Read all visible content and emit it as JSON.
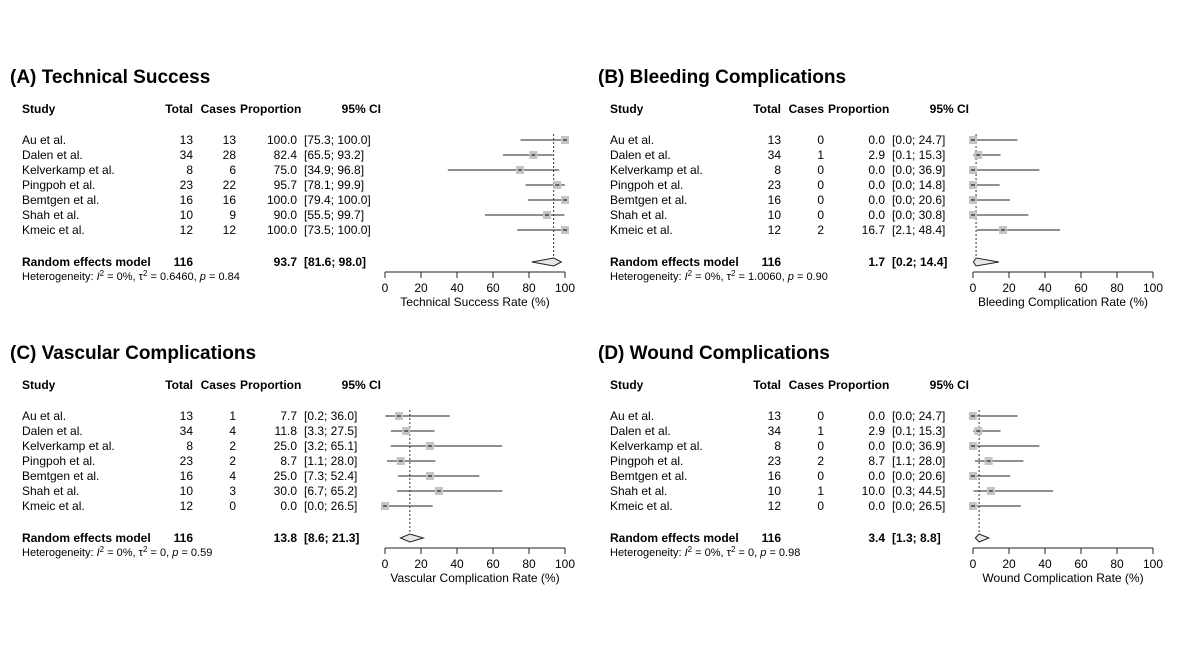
{
  "headers": {
    "study": "Study",
    "total": "Total",
    "cases": "Cases",
    "proportion": "Proportion",
    "ci": "95% CI"
  },
  "chart_data": [
    {
      "type": "forest",
      "label": "(A)",
      "title": "Technical Success",
      "xlabel": "Technical Success Rate (%)",
      "xlim": [
        0,
        100
      ],
      "xticks": [
        "0",
        "20",
        "40",
        "60",
        "80",
        "100"
      ],
      "studies": [
        {
          "name": "Au et al.",
          "total": "13",
          "cases": "13",
          "prop": "100.0",
          "ci": "[75.3; 100.0]",
          "est": 100.0,
          "lo": 75.3,
          "hi": 100.0
        },
        {
          "name": "Dalen et al.",
          "total": "34",
          "cases": "28",
          "prop": "82.4",
          "ci": "[65.5;  93.2]",
          "est": 82.4,
          "lo": 65.5,
          "hi": 93.2
        },
        {
          "name": "Kelverkamp et al.",
          "total": "8",
          "cases": "6",
          "prop": "75.0",
          "ci": "[34.9;  96.8]",
          "est": 75.0,
          "lo": 34.9,
          "hi": 96.8
        },
        {
          "name": "Pingpoh et al.",
          "total": "23",
          "cases": "22",
          "prop": "95.7",
          "ci": "[78.1;  99.9]",
          "est": 95.7,
          "lo": 78.1,
          "hi": 99.9
        },
        {
          "name": "Bemtgen et al.",
          "total": "16",
          "cases": "16",
          "prop": "100.0",
          "ci": "[79.4; 100.0]",
          "est": 100.0,
          "lo": 79.4,
          "hi": 100.0
        },
        {
          "name": "Shah et al.",
          "total": "10",
          "cases": "9",
          "prop": "90.0",
          "ci": "[55.5;  99.7]",
          "est": 90.0,
          "lo": 55.5,
          "hi": 99.7
        },
        {
          "name": "Kmeic et al.",
          "total": "12",
          "cases": "12",
          "prop": "100.0",
          "ci": "[73.5; 100.0]",
          "est": 100.0,
          "lo": 73.5,
          "hi": 100.0
        }
      ],
      "pooled": {
        "name": "Random effects model",
        "total": "116",
        "prop": "93.7",
        "ci": "[81.6;  98.0]",
        "est": 93.7,
        "lo": 81.6,
        "hi": 98.0
      },
      "heterogeneity": {
        "i2": "0%",
        "tau2": "0.6460",
        "p": "0.84"
      }
    },
    {
      "type": "forest",
      "label": "(B)",
      "title": "Bleeding Complications",
      "xlabel": "Bleeding Complication Rate (%)",
      "xlim": [
        0,
        100
      ],
      "xticks": [
        "0",
        "20",
        "40",
        "60",
        "80",
        "100"
      ],
      "studies": [
        {
          "name": "Au et al.",
          "total": "13",
          "cases": "0",
          "prop": "0.0",
          "ci": "[0.0; 24.7]",
          "est": 0.0,
          "lo": 0.0,
          "hi": 24.7
        },
        {
          "name": "Dalen et al.",
          "total": "34",
          "cases": "1",
          "prop": "2.9",
          "ci": "[0.1; 15.3]",
          "est": 2.9,
          "lo": 0.1,
          "hi": 15.3
        },
        {
          "name": "Kelverkamp et al.",
          "total": "8",
          "cases": "0",
          "prop": "0.0",
          "ci": "[0.0; 36.9]",
          "est": 0.0,
          "lo": 0.0,
          "hi": 36.9
        },
        {
          "name": "Pingpoh et al.",
          "total": "23",
          "cases": "0",
          "prop": "0.0",
          "ci": "[0.0; 14.8]",
          "est": 0.0,
          "lo": 0.0,
          "hi": 14.8
        },
        {
          "name": "Bemtgen et al.",
          "total": "16",
          "cases": "0",
          "prop": "0.0",
          "ci": "[0.0; 20.6]",
          "est": 0.0,
          "lo": 0.0,
          "hi": 20.6
        },
        {
          "name": "Shah et al.",
          "total": "10",
          "cases": "0",
          "prop": "0.0",
          "ci": "[0.0; 30.8]",
          "est": 0.0,
          "lo": 0.0,
          "hi": 30.8
        },
        {
          "name": "Kmeic et al.",
          "total": "12",
          "cases": "2",
          "prop": "16.7",
          "ci": "[2.1; 48.4]",
          "est": 16.7,
          "lo": 2.1,
          "hi": 48.4
        }
      ],
      "pooled": {
        "name": "Random effects model",
        "total": "116",
        "prop": "1.7",
        "ci": "[0.2; 14.4]",
        "est": 1.7,
        "lo": 0.2,
        "hi": 14.4
      },
      "heterogeneity": {
        "i2": "0%",
        "tau2": "1.0060",
        "p": "0.90"
      }
    },
    {
      "type": "forest",
      "label": "(C)",
      "title": "Vascular Complications",
      "xlabel": "Vascular Complication Rate (%)",
      "xlim": [
        0,
        100
      ],
      "xticks": [
        "0",
        "20",
        "40",
        "60",
        "80",
        "100"
      ],
      "studies": [
        {
          "name": "Au et al.",
          "total": "13",
          "cases": "1",
          "prop": "7.7",
          "ci": "[0.2; 36.0]",
          "est": 7.7,
          "lo": 0.2,
          "hi": 36.0
        },
        {
          "name": "Dalen et al.",
          "total": "34",
          "cases": "4",
          "prop": "11.8",
          "ci": "[3.3; 27.5]",
          "est": 11.8,
          "lo": 3.3,
          "hi": 27.5
        },
        {
          "name": "Kelverkamp et al.",
          "total": "8",
          "cases": "2",
          "prop": "25.0",
          "ci": "[3.2; 65.1]",
          "est": 25.0,
          "lo": 3.2,
          "hi": 65.1
        },
        {
          "name": "Pingpoh et al.",
          "total": "23",
          "cases": "2",
          "prop": "8.7",
          "ci": "[1.1; 28.0]",
          "est": 8.7,
          "lo": 1.1,
          "hi": 28.0
        },
        {
          "name": "Bemtgen et al.",
          "total": "16",
          "cases": "4",
          "prop": "25.0",
          "ci": "[7.3; 52.4]",
          "est": 25.0,
          "lo": 7.3,
          "hi": 52.4
        },
        {
          "name": "Shah et al.",
          "total": "10",
          "cases": "3",
          "prop": "30.0",
          "ci": "[6.7; 65.2]",
          "est": 30.0,
          "lo": 6.7,
          "hi": 65.2
        },
        {
          "name": "Kmeic et al.",
          "total": "12",
          "cases": "0",
          "prop": "0.0",
          "ci": "[0.0; 26.5]",
          "est": 0.0,
          "lo": 0.0,
          "hi": 26.5
        }
      ],
      "pooled": {
        "name": "Random effects model",
        "total": "116",
        "prop": "13.8",
        "ci": "[8.6; 21.3]",
        "est": 13.8,
        "lo": 8.6,
        "hi": 21.3
      },
      "heterogeneity": {
        "i2": "0%",
        "tau2": "0",
        "p": "0.59"
      }
    },
    {
      "type": "forest",
      "label": "(D)",
      "title": "Wound Complications",
      "xlabel": "Wound Complication Rate (%)",
      "xlim": [
        0,
        100
      ],
      "xticks": [
        "0",
        "20",
        "40",
        "60",
        "80",
        "100"
      ],
      "studies": [
        {
          "name": "Au et al.",
          "total": "13",
          "cases": "0",
          "prop": "0.0",
          "ci": "[0.0; 24.7]",
          "est": 0.0,
          "lo": 0.0,
          "hi": 24.7
        },
        {
          "name": "Dalen et al.",
          "total": "34",
          "cases": "1",
          "prop": "2.9",
          "ci": "[0.1; 15.3]",
          "est": 2.9,
          "lo": 0.1,
          "hi": 15.3
        },
        {
          "name": "Kelverkamp et al.",
          "total": "8",
          "cases": "0",
          "prop": "0.0",
          "ci": "[0.0; 36.9]",
          "est": 0.0,
          "lo": 0.0,
          "hi": 36.9
        },
        {
          "name": "Pingpoh et al.",
          "total": "23",
          "cases": "2",
          "prop": "8.7",
          "ci": "[1.1; 28.0]",
          "est": 8.7,
          "lo": 1.1,
          "hi": 28.0
        },
        {
          "name": "Bemtgen et al.",
          "total": "16",
          "cases": "0",
          "prop": "0.0",
          "ci": "[0.0; 20.6]",
          "est": 0.0,
          "lo": 0.0,
          "hi": 20.6
        },
        {
          "name": "Shah et al.",
          "total": "10",
          "cases": "1",
          "prop": "10.0",
          "ci": "[0.3; 44.5]",
          "est": 10.0,
          "lo": 0.3,
          "hi": 44.5
        },
        {
          "name": "Kmeic et al.",
          "total": "12",
          "cases": "0",
          "prop": "0.0",
          "ci": "[0.0; 26.5]",
          "est": 0.0,
          "lo": 0.0,
          "hi": 26.5
        }
      ],
      "pooled": {
        "name": "Random effects model",
        "total": "116",
        "prop": "3.4",
        "ci": "[1.3;  8.8]",
        "est": 3.4,
        "lo": 1.3,
        "hi": 8.8
      },
      "heterogeneity": {
        "i2": "0%",
        "tau2": "0",
        "p": "0.98"
      }
    }
  ]
}
